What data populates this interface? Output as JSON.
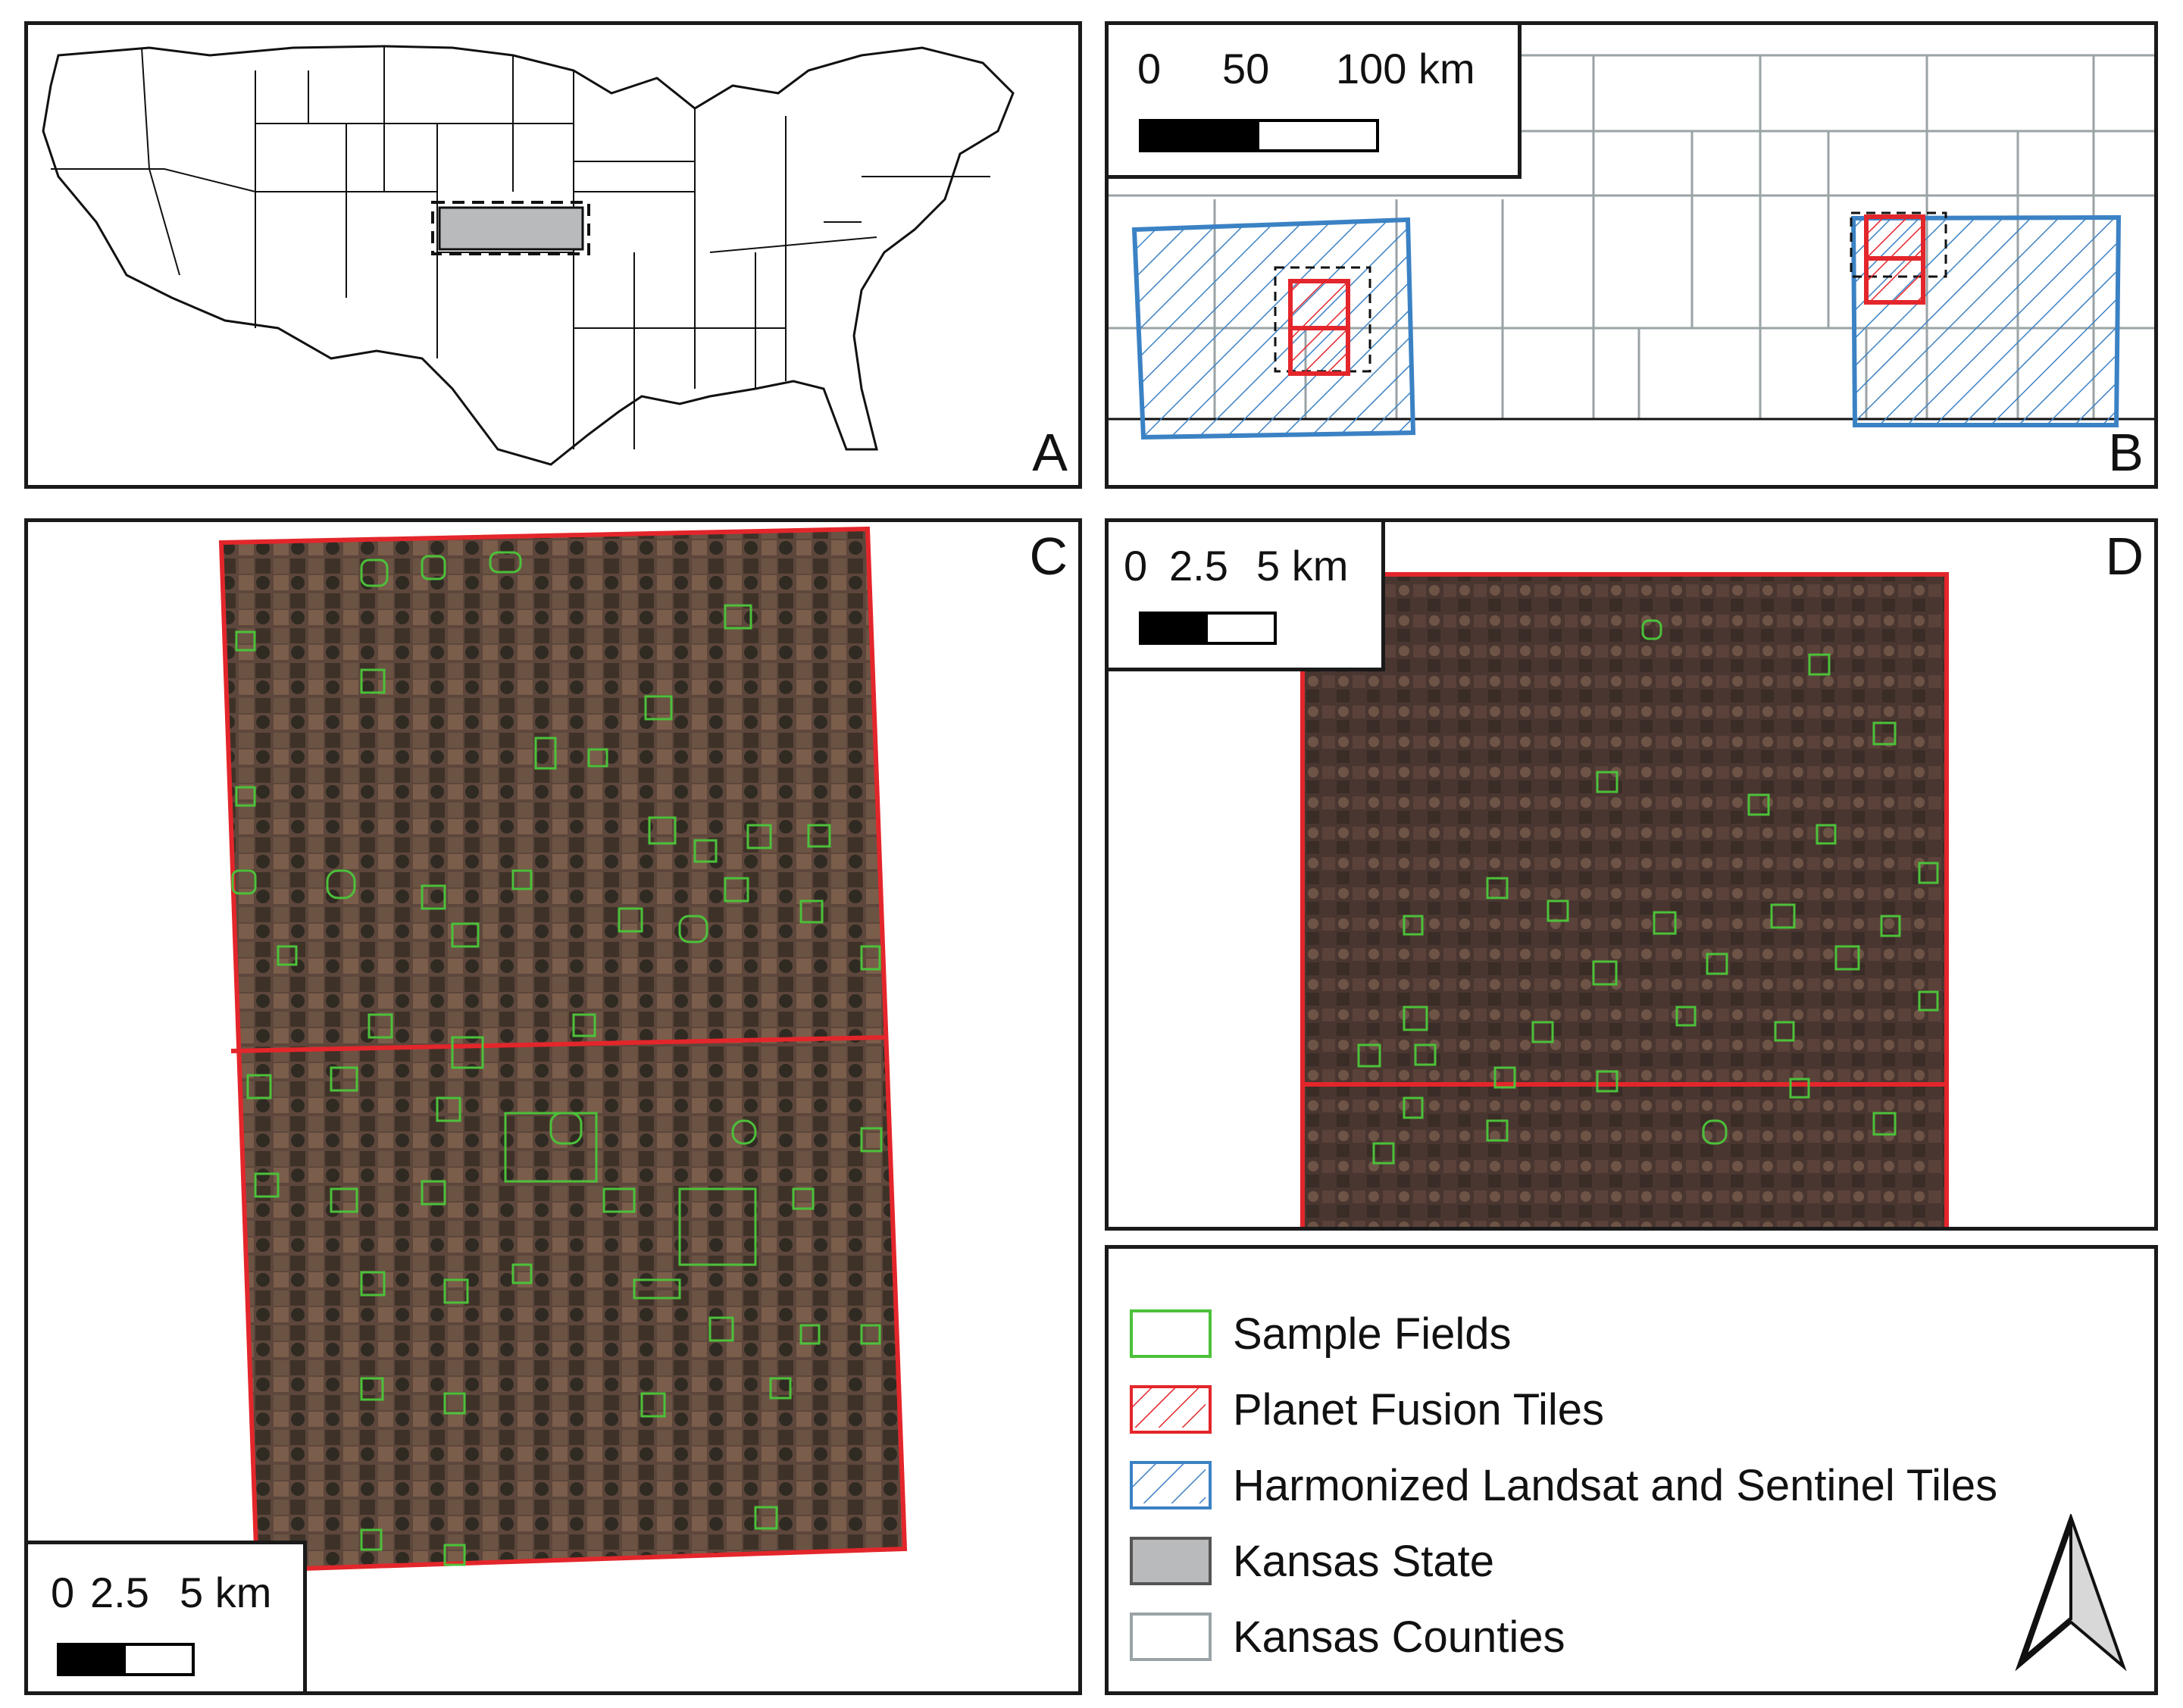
{
  "colors": {
    "sample_fields": "#4cc13a",
    "planet_tiles": "#e3262b",
    "hls_tiles": "#3b82c4",
    "kansas_state": "#b8babc",
    "kansas_counties": "#9aa3a6",
    "imagery": "#5a4238"
  },
  "panels": {
    "a": {
      "label": "A"
    },
    "b": {
      "label": "B",
      "scalebar": {
        "ticks": [
          "0",
          "50",
          "100 km"
        ]
      }
    },
    "c": {
      "label": "C",
      "scalebar": {
        "ticks": [
          "0",
          "2.5",
          "5 km"
        ]
      }
    },
    "d": {
      "label": "D",
      "scalebar": {
        "ticks": [
          "0",
          "2.5",
          "5 km"
        ]
      }
    }
  },
  "legend": {
    "items": [
      {
        "label": "Sample Fields",
        "key": "sample_fields"
      },
      {
        "label": "Planet Fusion Tiles",
        "key": "planet_tiles"
      },
      {
        "label": "Harmonized Landsat and Sentinel Tiles",
        "key": "hls_tiles"
      },
      {
        "label": "Kansas State",
        "key": "kansas_state"
      },
      {
        "label": "Kansas Counties",
        "key": "kansas_counties"
      }
    ],
    "north_arrow_icon": "north-arrow-icon"
  }
}
